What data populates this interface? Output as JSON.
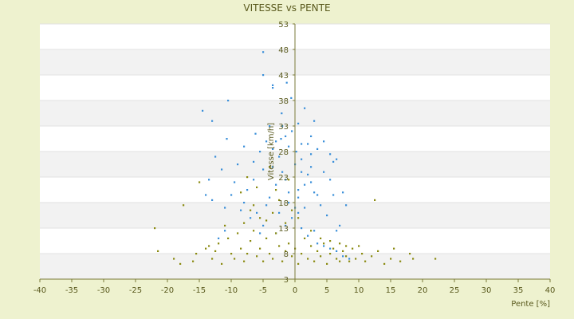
{
  "chart_data": {
    "type": "scatter",
    "title": "VITESSE vs PENTE",
    "xlabel": "Pente [%]",
    "ylabel": "Vitesse [km/h]",
    "xlim": [
      -40,
      40
    ],
    "ylim": [
      3,
      53
    ],
    "x_ticks": [
      -40,
      -35,
      -30,
      -25,
      -20,
      -15,
      -10,
      -5,
      0,
      5,
      10,
      15,
      20,
      25,
      30,
      35,
      40
    ],
    "y_ticks": [
      3,
      8,
      13,
      18,
      23,
      28,
      33,
      38,
      43,
      48,
      53
    ],
    "grid": true,
    "legend": "none",
    "colors": {
      "background": "#eef2cf",
      "plot_area": "#ffffff",
      "band": "#f2f2f2",
      "axis": "#7a7a3a",
      "series_blue": "#3a8fd9",
      "series_olive": "#8a8a10"
    },
    "series": [
      {
        "color": "#3a8fd9",
        "points": [
          [
            -5.0,
            47.5
          ],
          [
            -3.5,
            41
          ],
          [
            -3.5,
            40.5
          ],
          [
            -1.3,
            41.5
          ],
          [
            -0.6,
            38.5
          ],
          [
            -5.0,
            43
          ],
          [
            -10.5,
            38
          ],
          [
            -14.5,
            36
          ],
          [
            -13,
            34
          ],
          [
            -2.1,
            35.5
          ],
          [
            -6.2,
            31.5
          ],
          [
            -10.7,
            30.5
          ],
          [
            -2.0,
            33
          ],
          [
            -0.5,
            32
          ],
          [
            -3.0,
            30
          ],
          [
            0.2,
            28
          ],
          [
            2.5,
            31.0
          ],
          [
            2.5,
            27.5
          ],
          [
            4.5,
            30
          ],
          [
            6.0,
            26
          ],
          [
            3.0,
            20
          ],
          [
            2.5,
            22
          ],
          [
            4.0,
            17.5
          ],
          [
            5.0,
            15.5
          ],
          [
            8.0,
            17.5
          ],
          [
            7.0,
            13.5
          ],
          [
            6.5,
            12.5
          ],
          [
            7.5,
            20
          ],
          [
            6.5,
            26.5
          ],
          [
            1.0,
            24
          ],
          [
            0.5,
            19
          ],
          [
            -1.5,
            22.5
          ],
          [
            -3.0,
            21.5
          ],
          [
            -2.5,
            16
          ],
          [
            -4.0,
            19
          ],
          [
            -5.0,
            24.5
          ],
          [
            -6.5,
            22.5
          ],
          [
            -4.5,
            17.5
          ],
          [
            -7.0,
            15
          ],
          [
            -8.5,
            16.5
          ],
          [
            -9.0,
            25.5
          ],
          [
            -8.0,
            29
          ],
          [
            -13.5,
            22.5
          ],
          [
            -14.0,
            19.5
          ],
          [
            -13.0,
            18.5
          ],
          [
            -11.0,
            17
          ],
          [
            -10.0,
            19.5
          ],
          [
            -12.0,
            11
          ],
          [
            -11.0,
            12.5
          ],
          [
            -5.5,
            12.0
          ],
          [
            -3.0,
            12.0
          ],
          [
            -1.5,
            13.5
          ],
          [
            1.0,
            13.0
          ],
          [
            2.0,
            11.5
          ],
          [
            3.0,
            12.5
          ],
          [
            3.5,
            10.0
          ],
          [
            4.5,
            9.5
          ],
          [
            5.5,
            9.0
          ],
          [
            6.5,
            8.5
          ],
          [
            7.5,
            7.5
          ],
          [
            8.5,
            7.0
          ],
          [
            0.0,
            17
          ],
          [
            -1.0,
            18
          ],
          [
            0.5,
            20.5
          ],
          [
            1.5,
            21.5
          ],
          [
            2.5,
            25
          ],
          [
            -2.5,
            27
          ],
          [
            -3.5,
            25
          ],
          [
            -5.5,
            28
          ],
          [
            -6.5,
            26
          ],
          [
            -4.0,
            33
          ],
          [
            -2.2,
            30.5
          ],
          [
            3.0,
            34
          ],
          [
            1.5,
            36.5
          ],
          [
            2.0,
            29.5
          ],
          [
            5.5,
            22.5
          ],
          [
            6.0,
            19.5
          ],
          [
            3.5,
            19.5
          ],
          [
            -0.5,
            15
          ],
          [
            0.5,
            16
          ],
          [
            1.5,
            17
          ],
          [
            -1.0,
            20
          ],
          [
            -2.0,
            24
          ],
          [
            -3.5,
            28.5
          ],
          [
            -4.5,
            30
          ],
          [
            0.0,
            25.5
          ],
          [
            1.0,
            26.5
          ],
          [
            2.0,
            23.5
          ],
          [
            -7.5,
            20.5
          ],
          [
            -9.5,
            22
          ],
          [
            -11.5,
            24.5
          ],
          [
            -12.5,
            27
          ],
          [
            -8.0,
            18
          ],
          [
            -6.0,
            16
          ],
          [
            -5.0,
            13.5
          ],
          [
            4.5,
            24
          ],
          [
            5.5,
            27.5
          ],
          [
            3.5,
            28.5
          ],
          [
            1.0,
            29.5
          ],
          [
            -1.0,
            29.0
          ],
          [
            -1.5,
            31.0
          ],
          [
            0.5,
            33.5
          ]
        ]
      },
      {
        "color": "#8a8a10",
        "points": [
          [
            -22.0,
            13
          ],
          [
            -21.5,
            8.5
          ],
          [
            -19.0,
            7.0
          ],
          [
            -18.0,
            6.0
          ],
          [
            -17.5,
            17.5
          ],
          [
            -15.0,
            22
          ],
          [
            -13.5,
            9.5
          ],
          [
            -13.0,
            7.0
          ],
          [
            -12.5,
            8.5
          ],
          [
            -11.5,
            6.0
          ],
          [
            -10.0,
            8.0
          ],
          [
            -9.5,
            7.0
          ],
          [
            -8.5,
            9.0
          ],
          [
            -8.0,
            6.5
          ],
          [
            -7.5,
            8.0
          ],
          [
            -7.0,
            10.5
          ],
          [
            -6.5,
            12.5
          ],
          [
            -6.0,
            7.5
          ],
          [
            -5.5,
            9.0
          ],
          [
            -5.0,
            6.5
          ],
          [
            -4.5,
            11.0
          ],
          [
            -4.0,
            8.0
          ],
          [
            -3.5,
            7.0
          ],
          [
            -3.0,
            12.0
          ],
          [
            -2.5,
            9.5
          ],
          [
            -2.0,
            6.5
          ],
          [
            -1.5,
            8.5
          ],
          [
            -1.0,
            10.0
          ],
          [
            -0.5,
            7.5
          ],
          [
            0.0,
            9.0
          ],
          [
            0.5,
            6.0
          ],
          [
            1.0,
            8.0
          ],
          [
            1.5,
            11.0
          ],
          [
            2.0,
            7.0
          ],
          [
            2.5,
            9.5
          ],
          [
            3.0,
            6.5
          ],
          [
            3.5,
            8.5
          ],
          [
            4.0,
            7.5
          ],
          [
            4.5,
            10.0
          ],
          [
            5.0,
            6.0
          ],
          [
            5.5,
            8.0
          ],
          [
            6.0,
            9.0
          ],
          [
            6.5,
            7.0
          ],
          [
            7.0,
            6.5
          ],
          [
            7.5,
            8.5
          ],
          [
            8.0,
            7.5
          ],
          [
            8.5,
            6.5
          ],
          [
            9.0,
            9.0
          ],
          [
            9.5,
            7.0
          ],
          [
            10.5,
            8.0
          ],
          [
            11.0,
            6.5
          ],
          [
            12.0,
            7.5
          ],
          [
            13.0,
            8.5
          ],
          [
            14.0,
            6.0
          ],
          [
            15.0,
            7.0
          ],
          [
            15.5,
            9.0
          ],
          [
            16.5,
            6.5
          ],
          [
            18.0,
            8.0
          ],
          [
            18.5,
            7.0
          ],
          [
            22.0,
            7.0
          ],
          [
            12.5,
            18.5
          ],
          [
            -8.0,
            14.0
          ],
          [
            -7.0,
            16.5
          ],
          [
            -6.5,
            17.5
          ],
          [
            -5.5,
            15.0
          ],
          [
            -4.5,
            14.5
          ],
          [
            -3.5,
            16.0
          ],
          [
            -2.5,
            18.5
          ],
          [
            -1.5,
            14.0
          ],
          [
            -0.5,
            16.5
          ],
          [
            0.5,
            15.0
          ],
          [
            -9.0,
            12.0
          ],
          [
            -10.5,
            11.0
          ],
          [
            -11.0,
            13.5
          ],
          [
            -12.0,
            10.0
          ],
          [
            -14.0,
            9.0
          ],
          [
            -15.5,
            8.0
          ],
          [
            -16.0,
            6.5
          ],
          [
            2.5,
            12.5
          ],
          [
            4.0,
            11.0
          ],
          [
            5.5,
            10.5
          ],
          [
            7.0,
            10.0
          ],
          [
            8.0,
            9.5
          ],
          [
            10.0,
            9.5
          ],
          [
            -7.5,
            23.0
          ],
          [
            -6.0,
            21.0
          ],
          [
            -3.0,
            20.5
          ],
          [
            -1.0,
            22.5
          ],
          [
            -4.0,
            25.0
          ],
          [
            -8.5,
            20.0
          ]
        ]
      }
    ]
  }
}
